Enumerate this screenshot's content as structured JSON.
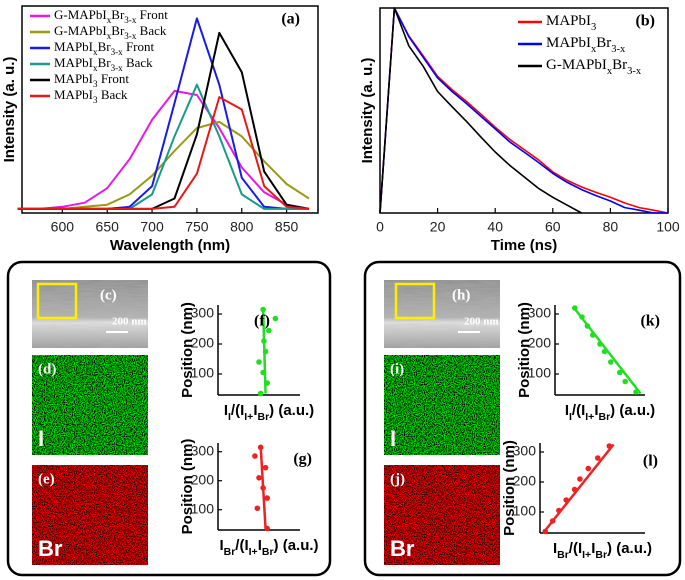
{
  "chart_data": [
    {
      "type": "line",
      "label": "(a)",
      "xlabel": "Wavelength (nm)",
      "ylabel": "Intensity (a. u.)",
      "xlim": [
        555,
        885
      ],
      "ylim": [
        0,
        1
      ],
      "xticks": [
        600,
        650,
        700,
        750,
        800,
        850
      ],
      "legend": "upper left",
      "x": [
        550,
        575,
        600,
        625,
        650,
        675,
        700,
        725,
        750,
        775,
        800,
        825,
        850,
        875
      ],
      "series": [
        {
          "name": "G-MAPbIxBr3-x Front",
          "color": "#e619e6",
          "values": [
            0.02,
            0.02,
            0.03,
            0.05,
            0.12,
            0.26,
            0.45,
            0.59,
            0.57,
            0.41,
            0.22,
            0.1,
            0.04,
            0.02
          ]
        },
        {
          "name": "G-MAPbIxBr3-x Back",
          "color": "#9a9a19",
          "values": [
            0.02,
            0.02,
            0.02,
            0.03,
            0.04,
            0.09,
            0.18,
            0.3,
            0.41,
            0.44,
            0.37,
            0.25,
            0.14,
            0.07
          ]
        },
        {
          "name": "MAPbIxBr3-x Front",
          "color": "#1a1ae6",
          "values": [
            0.02,
            0.02,
            0.02,
            0.02,
            0.02,
            0.03,
            0.13,
            0.53,
            0.94,
            0.62,
            0.17,
            0.03,
            0.02,
            0.02
          ]
        },
        {
          "name": "MAPbIxBr3-x Back",
          "color": "#199a8a",
          "values": [
            0.02,
            0.02,
            0.02,
            0.02,
            0.02,
            0.02,
            0.09,
            0.37,
            0.62,
            0.37,
            0.09,
            0.02,
            0.02,
            0.02
          ]
        },
        {
          "name": "MAPbI3 Front",
          "color": "#000000",
          "values": [
            0.02,
            0.02,
            0.02,
            0.02,
            0.02,
            0.02,
            0.02,
            0.07,
            0.38,
            0.87,
            0.68,
            0.2,
            0.04,
            0.02
          ]
        },
        {
          "name": "MAPbI3 Back",
          "color": "#e61919",
          "values": [
            0.02,
            0.02,
            0.02,
            0.02,
            0.02,
            0.02,
            0.02,
            0.03,
            0.19,
            0.56,
            0.5,
            0.13,
            0.03,
            0.02
          ]
        }
      ]
    },
    {
      "type": "line",
      "label": "(b)",
      "xlabel": "Time (ns)",
      "ylabel": "Intensity (a. u.)",
      "log": true,
      "xlim": [
        0,
        100
      ],
      "ylim": [
        0.001,
        1
      ],
      "xticks": [
        0,
        20,
        40,
        60,
        80,
        100
      ],
      "legend": "upper right",
      "x": [
        0,
        5,
        10,
        15,
        20,
        25,
        30,
        35,
        40,
        45,
        50,
        55,
        60,
        65,
        70,
        75,
        80,
        85,
        90,
        95,
        100
      ],
      "series": [
        {
          "name": "MAPbI3",
          "color": "#ff0000",
          "values": [
            0.001,
            1,
            0.39,
            0.2,
            0.1,
            0.064,
            0.043,
            0.028,
            0.018,
            0.012,
            0.0085,
            0.006,
            0.004,
            0.003,
            0.0024,
            0.002,
            0.0017,
            0.0014,
            0.0012,
            0.0011,
            0.001
          ]
        },
        {
          "name": "MAPbIxBr3-x",
          "color": "#0000ff",
          "values": [
            0.001,
            1,
            0.38,
            0.19,
            0.095,
            0.06,
            0.04,
            0.026,
            0.017,
            0.011,
            0.0078,
            0.0055,
            0.0038,
            0.0028,
            0.0022,
            0.0018,
            0.0015,
            0.0012,
            0.0011,
            0.001,
            0.001
          ]
        },
        {
          "name": "G-MAPbIxBr3-x",
          "color": "#000000",
          "values": [
            0.001,
            1,
            0.28,
            0.14,
            0.06,
            0.036,
            0.022,
            0.013,
            0.0078,
            0.005,
            0.0034,
            0.0023,
            0.0017,
            0.0013,
            0.001,
            null,
            null,
            null,
            null,
            null,
            null
          ]
        }
      ]
    },
    {
      "type": "scatter",
      "label": "(f)",
      "ylabel": "Position (nm)",
      "color": "#22dd22",
      "xlim": [
        0,
        1
      ],
      "ylim": [
        30,
        330
      ],
      "yticks": [
        100,
        200,
        300
      ],
      "xlabel": [
        {
          "text": "I"
        },
        {
          "text": "I",
          "sub": true
        },
        {
          "text": "/(I"
        },
        {
          "text": "I+",
          "sub": true
        },
        {
          "text": "I"
        },
        {
          "text": "Br",
          "sub": true
        },
        {
          "text": ") (a.u.)"
        }
      ],
      "x": [
        0.52,
        0.6,
        0.55,
        0.5,
        0.58,
        0.56,
        0.62,
        0.7,
        0.55
      ],
      "y": [
        35,
        70,
        105,
        140,
        175,
        210,
        245,
        285,
        315
      ],
      "fit": {
        "x": [
          0.58,
          0.55
        ],
        "y": [
          35,
          320
        ]
      }
    },
    {
      "type": "scatter",
      "label": "(g)",
      "ylabel": "Position (nm)",
      "color": "#ee2222",
      "xlim": [
        0,
        1
      ],
      "ylim": [
        30,
        330
      ],
      "yticks": [
        100,
        200,
        300
      ],
      "xlabel": [
        {
          "text": "I"
        },
        {
          "text": "Br",
          "sub": true
        },
        {
          "text": "/(I"
        },
        {
          "text": "I+",
          "sub": true
        },
        {
          "text": "I"
        },
        {
          "text": "Br",
          "sub": true
        },
        {
          "text": ") (a.u.)"
        }
      ],
      "x": [
        0.6,
        0.48,
        0.6,
        0.55,
        0.5,
        0.58,
        0.45,
        0.52
      ],
      "y": [
        35,
        105,
        140,
        175,
        210,
        245,
        285,
        315
      ],
      "fit": {
        "x": [
          0.58,
          0.52
        ],
        "y": [
          35,
          320
        ]
      }
    },
    {
      "type": "scatter",
      "label": "(k)",
      "ylabel": "Position (nm)",
      "color": "#22dd22",
      "xlim": [
        0,
        1
      ],
      "ylim": [
        30,
        330
      ],
      "yticks": [
        100,
        200,
        300
      ],
      "xlabel": [
        {
          "text": "I"
        },
        {
          "text": "I",
          "sub": true
        },
        {
          "text": "/(I"
        },
        {
          "text": "I+",
          "sub": true
        },
        {
          "text": "I"
        },
        {
          "text": "Br",
          "sub": true
        },
        {
          "text": ") (a.u.)"
        }
      ],
      "x": [
        0.22,
        0.3,
        0.36,
        0.42,
        0.5,
        0.55,
        0.62,
        0.72,
        0.78,
        0.9
      ],
      "y": [
        320,
        290,
        260,
        230,
        200,
        175,
        140,
        105,
        75,
        40
      ],
      "fit": {
        "x": [
          0.2,
          0.95
        ],
        "y": [
          325,
          35
        ]
      }
    },
    {
      "type": "scatter",
      "label": "(l)",
      "ylabel": "Position (nm)",
      "color": "#ee2222",
      "xlim": [
        0,
        1
      ],
      "ylim": [
        30,
        330
      ],
      "yticks": [
        100,
        200,
        300
      ],
      "xlabel": [
        {
          "text": "I"
        },
        {
          "text": "Br",
          "sub": true
        },
        {
          "text": "/(I"
        },
        {
          "text": "I+",
          "sub": true
        },
        {
          "text": "I"
        },
        {
          "text": "Br",
          "sub": true
        },
        {
          "text": ") (a.u.)"
        }
      ],
      "x": [
        0.05,
        0.12,
        0.18,
        0.25,
        0.33,
        0.38,
        0.46,
        0.55,
        0.66
      ],
      "y": [
        35,
        70,
        105,
        140,
        175,
        210,
        245,
        280,
        320
      ],
      "fit": {
        "x": [
          0.03,
          0.7
        ],
        "y": [
          30,
          325
        ]
      }
    }
  ],
  "images": [
    {
      "label": "(c)",
      "scale": "200 nm"
    },
    {
      "label": "(d)",
      "element": "I"
    },
    {
      "label": "(e)",
      "element": "Br"
    },
    {
      "label": "(h)",
      "scale": "200 nm"
    },
    {
      "label": "(i)",
      "element": "I"
    },
    {
      "label": "(j)",
      "element": "Br"
    }
  ]
}
